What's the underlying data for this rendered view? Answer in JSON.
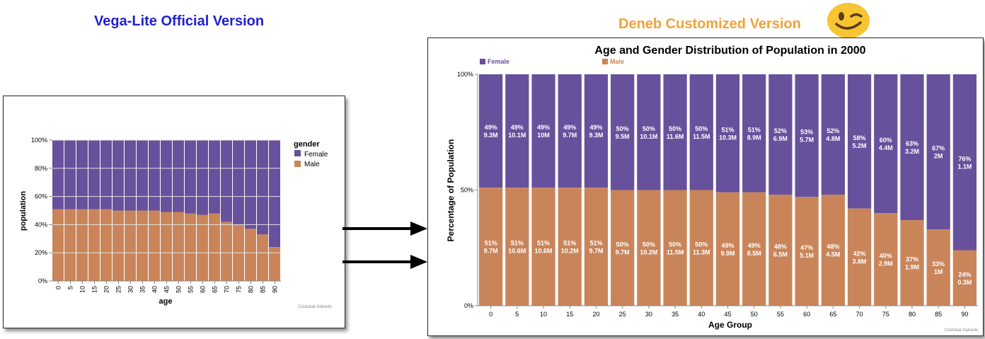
{
  "headings": {
    "official": "Vega-Lite Official Version",
    "custom": "Deneb Customized Version"
  },
  "colors": {
    "female": "#67509c",
    "male": "#c98559",
    "official_heading": "#1f1fd6",
    "custom_heading": "#f0a33a"
  },
  "left_chart": {
    "legend_title": "gender",
    "legend_female": "Female",
    "legend_male": "Male",
    "xlabel": "age",
    "ylabel": "population",
    "credit": "Cristobal-Salcedo",
    "y_ticks": [
      "0%",
      "20%",
      "40%",
      "60%",
      "80%",
      "100%"
    ]
  },
  "right_chart": {
    "title": "Age and Gender Distribution of Population in 2000",
    "legend_female": "Female",
    "legend_male": "Male",
    "xlabel": "Age Group",
    "ylabel": "Percentage of Population",
    "credit": "Cristobal-Salcedo",
    "y_ticks": [
      "0%",
      "50%",
      "100%"
    ]
  },
  "chart_data": {
    "type": "bar",
    "stacked": "normalized",
    "categories": [
      0,
      5,
      10,
      15,
      20,
      25,
      30,
      35,
      40,
      45,
      50,
      55,
      60,
      65,
      70,
      75,
      80,
      85,
      90
    ],
    "ylim": [
      0,
      100
    ],
    "series": [
      {
        "name": "Female",
        "percent": [
          49,
          49,
          49,
          49,
          49,
          50,
          50,
          50,
          50,
          51,
          51,
          52,
          53,
          52,
          58,
          60,
          63,
          67,
          76
        ],
        "population_labels": [
          "9.3M",
          "10.1M",
          "10M",
          "9.7M",
          "9.3M",
          "9.5M",
          "10.1M",
          "11.6M",
          "11.5M",
          "10.3M",
          "8.9M",
          "6.9M",
          "5.7M",
          "4.8M",
          "5.2M",
          "4.4M",
          "3.2M",
          "2M",
          "1.1M"
        ]
      },
      {
        "name": "Male",
        "percent": [
          51,
          51,
          51,
          51,
          51,
          50,
          50,
          50,
          50,
          49,
          49,
          48,
          47,
          48,
          42,
          40,
          37,
          33,
          24
        ],
        "population_labels": [
          "9.7M",
          "10.6M",
          "10.6M",
          "10.2M",
          "9.7M",
          "9.7M",
          "10.2M",
          "11.5M",
          "11.3M",
          "9.9M",
          "8.5M",
          "6.5M",
          "5.1M",
          "4.5M",
          "3.8M",
          "2.9M",
          "1.9M",
          "1M",
          "0.3M"
        ]
      }
    ]
  }
}
